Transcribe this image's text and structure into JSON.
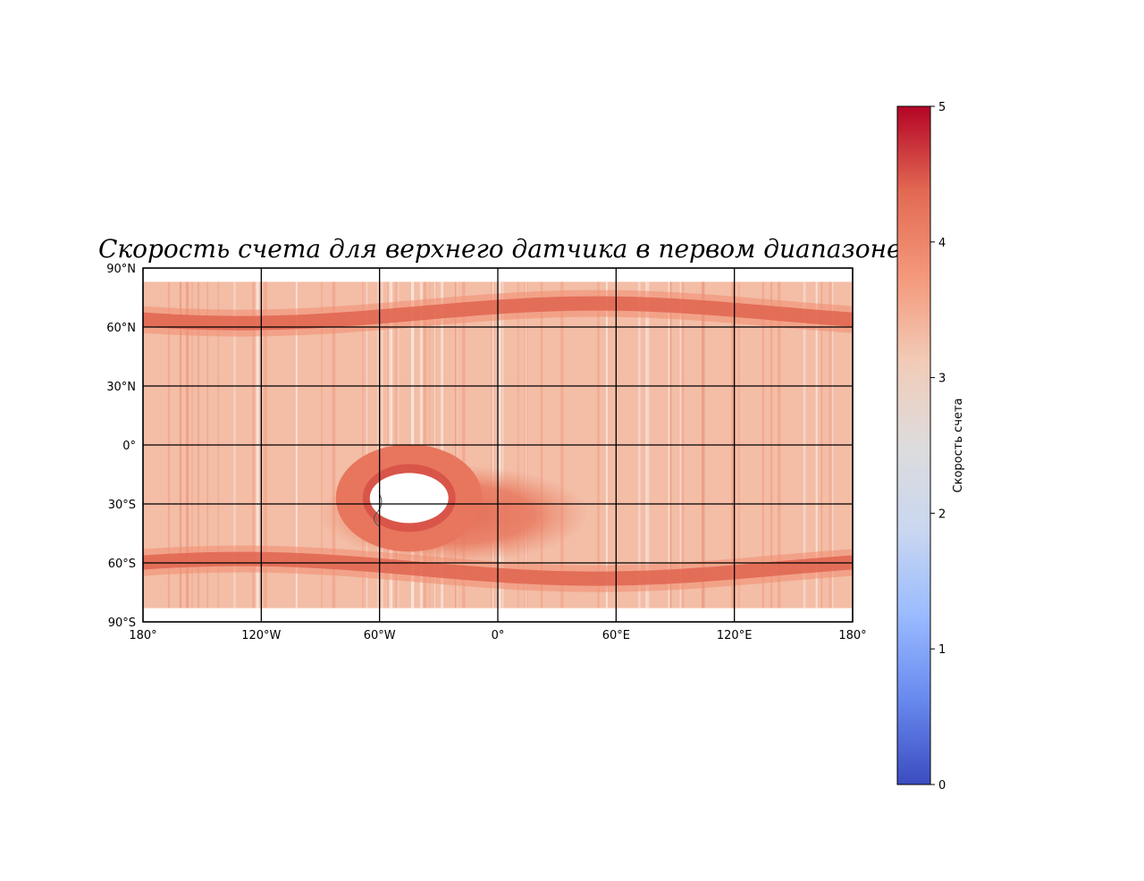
{
  "title": "Скорость счета для верхнего датчика в первом диапазоне",
  "map": {
    "projection": "plate-carree",
    "lon_range": [
      -180,
      180
    ],
    "lat_range": [
      -90,
      90
    ],
    "gridlines": true,
    "lon_ticks": [
      {
        "value": -180,
        "label": "180°"
      },
      {
        "value": -120,
        "label": "120°W"
      },
      {
        "value": -60,
        "label": "60°W"
      },
      {
        "value": 0,
        "label": "0°"
      },
      {
        "value": 60,
        "label": "60°E"
      },
      {
        "value": 120,
        "label": "120°E"
      },
      {
        "value": 180,
        "label": "180°"
      }
    ],
    "lat_ticks": [
      {
        "value": 90,
        "label": "90°N"
      },
      {
        "value": 60,
        "label": "60°N"
      },
      {
        "value": 30,
        "label": "30°N"
      },
      {
        "value": 0,
        "label": "0°"
      },
      {
        "value": -30,
        "label": "30°S"
      },
      {
        "value": -60,
        "label": "60°S"
      },
      {
        "value": -90,
        "label": "90°S"
      }
    ],
    "data_lat_extent": [
      -83,
      83
    ],
    "background_value": 3.3,
    "features": {
      "north_band": {
        "center_lat": 67,
        "value": 4.4
      },
      "south_band": {
        "center_lat": -63,
        "value": 4.4
      },
      "saa_anomaly": {
        "center_lon": -45,
        "center_lat": -27,
        "value": 4.2,
        "saturated_core": true
      }
    }
  },
  "colorbar": {
    "label": "Скорость счета",
    "colormap": "coolwarm",
    "range": [
      0,
      5
    ],
    "ticks": [
      "0",
      "1",
      "2",
      "3",
      "4",
      "5"
    ],
    "colors": [
      "#3b4cc0",
      "#6889ee",
      "#9abbff",
      "#c9d7f0",
      "#dddcdc",
      "#f2cbb7",
      "#f4987a",
      "#e26952",
      "#b40426"
    ]
  }
}
